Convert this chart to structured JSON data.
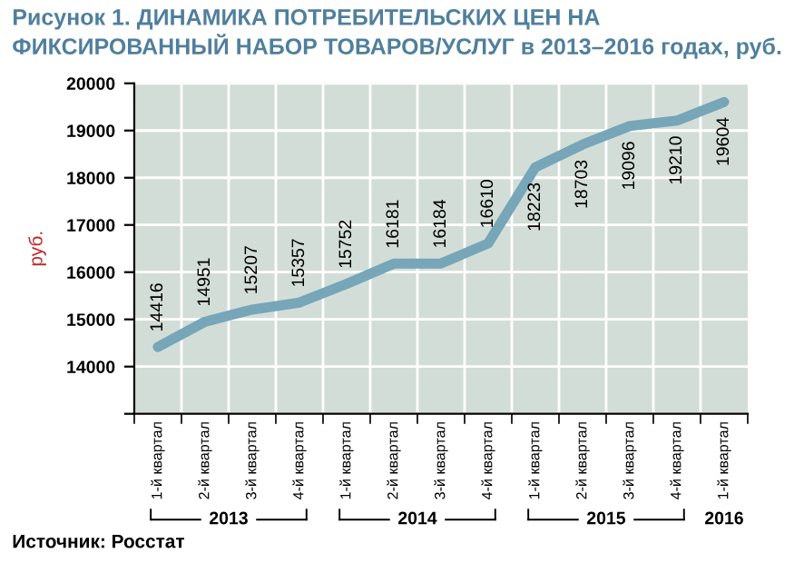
{
  "chart_data": {
    "type": "line",
    "title": "Рисунок 1. ДИНАМИКА ПОТРЕБИТЕЛЬСКИХ ЦЕН НА ФИКСИРОВАННЫЙ НАБОР ТОВАРОВ/УСЛУГ в 2013–2016 годах, руб.",
    "ylabel": "руб.",
    "categories": [
      "1-й квартал",
      "2-й квартал",
      "3-й квартал",
      "4-й квартал",
      "1-й квартал",
      "2-й квартал",
      "3-й квартал",
      "4-й квартал",
      "1-й квартал",
      "2-й квартал",
      "3-й квартал",
      "4-й квартал",
      "1-й квартал"
    ],
    "series": [
      {
        "color": "#76a6b8",
        "values": [
          14416,
          14951,
          15207,
          15357,
          15752,
          16181,
          16184,
          16610,
          18223,
          18703,
          19096,
          19210,
          19604
        ]
      }
    ],
    "ylim": [
      13000,
      20000
    ],
    "yticks": [
      {
        "value": 13000,
        "label": null
      },
      14000,
      15000,
      16000,
      17000,
      18000,
      19000,
      20000
    ],
    "grid": true,
    "marker": "none",
    "line_style": "solid",
    "data_labels": true,
    "annotations": [
      "2013",
      "2014",
      "2015",
      "2016",
      "Источник: Росстат"
    ]
  }
}
